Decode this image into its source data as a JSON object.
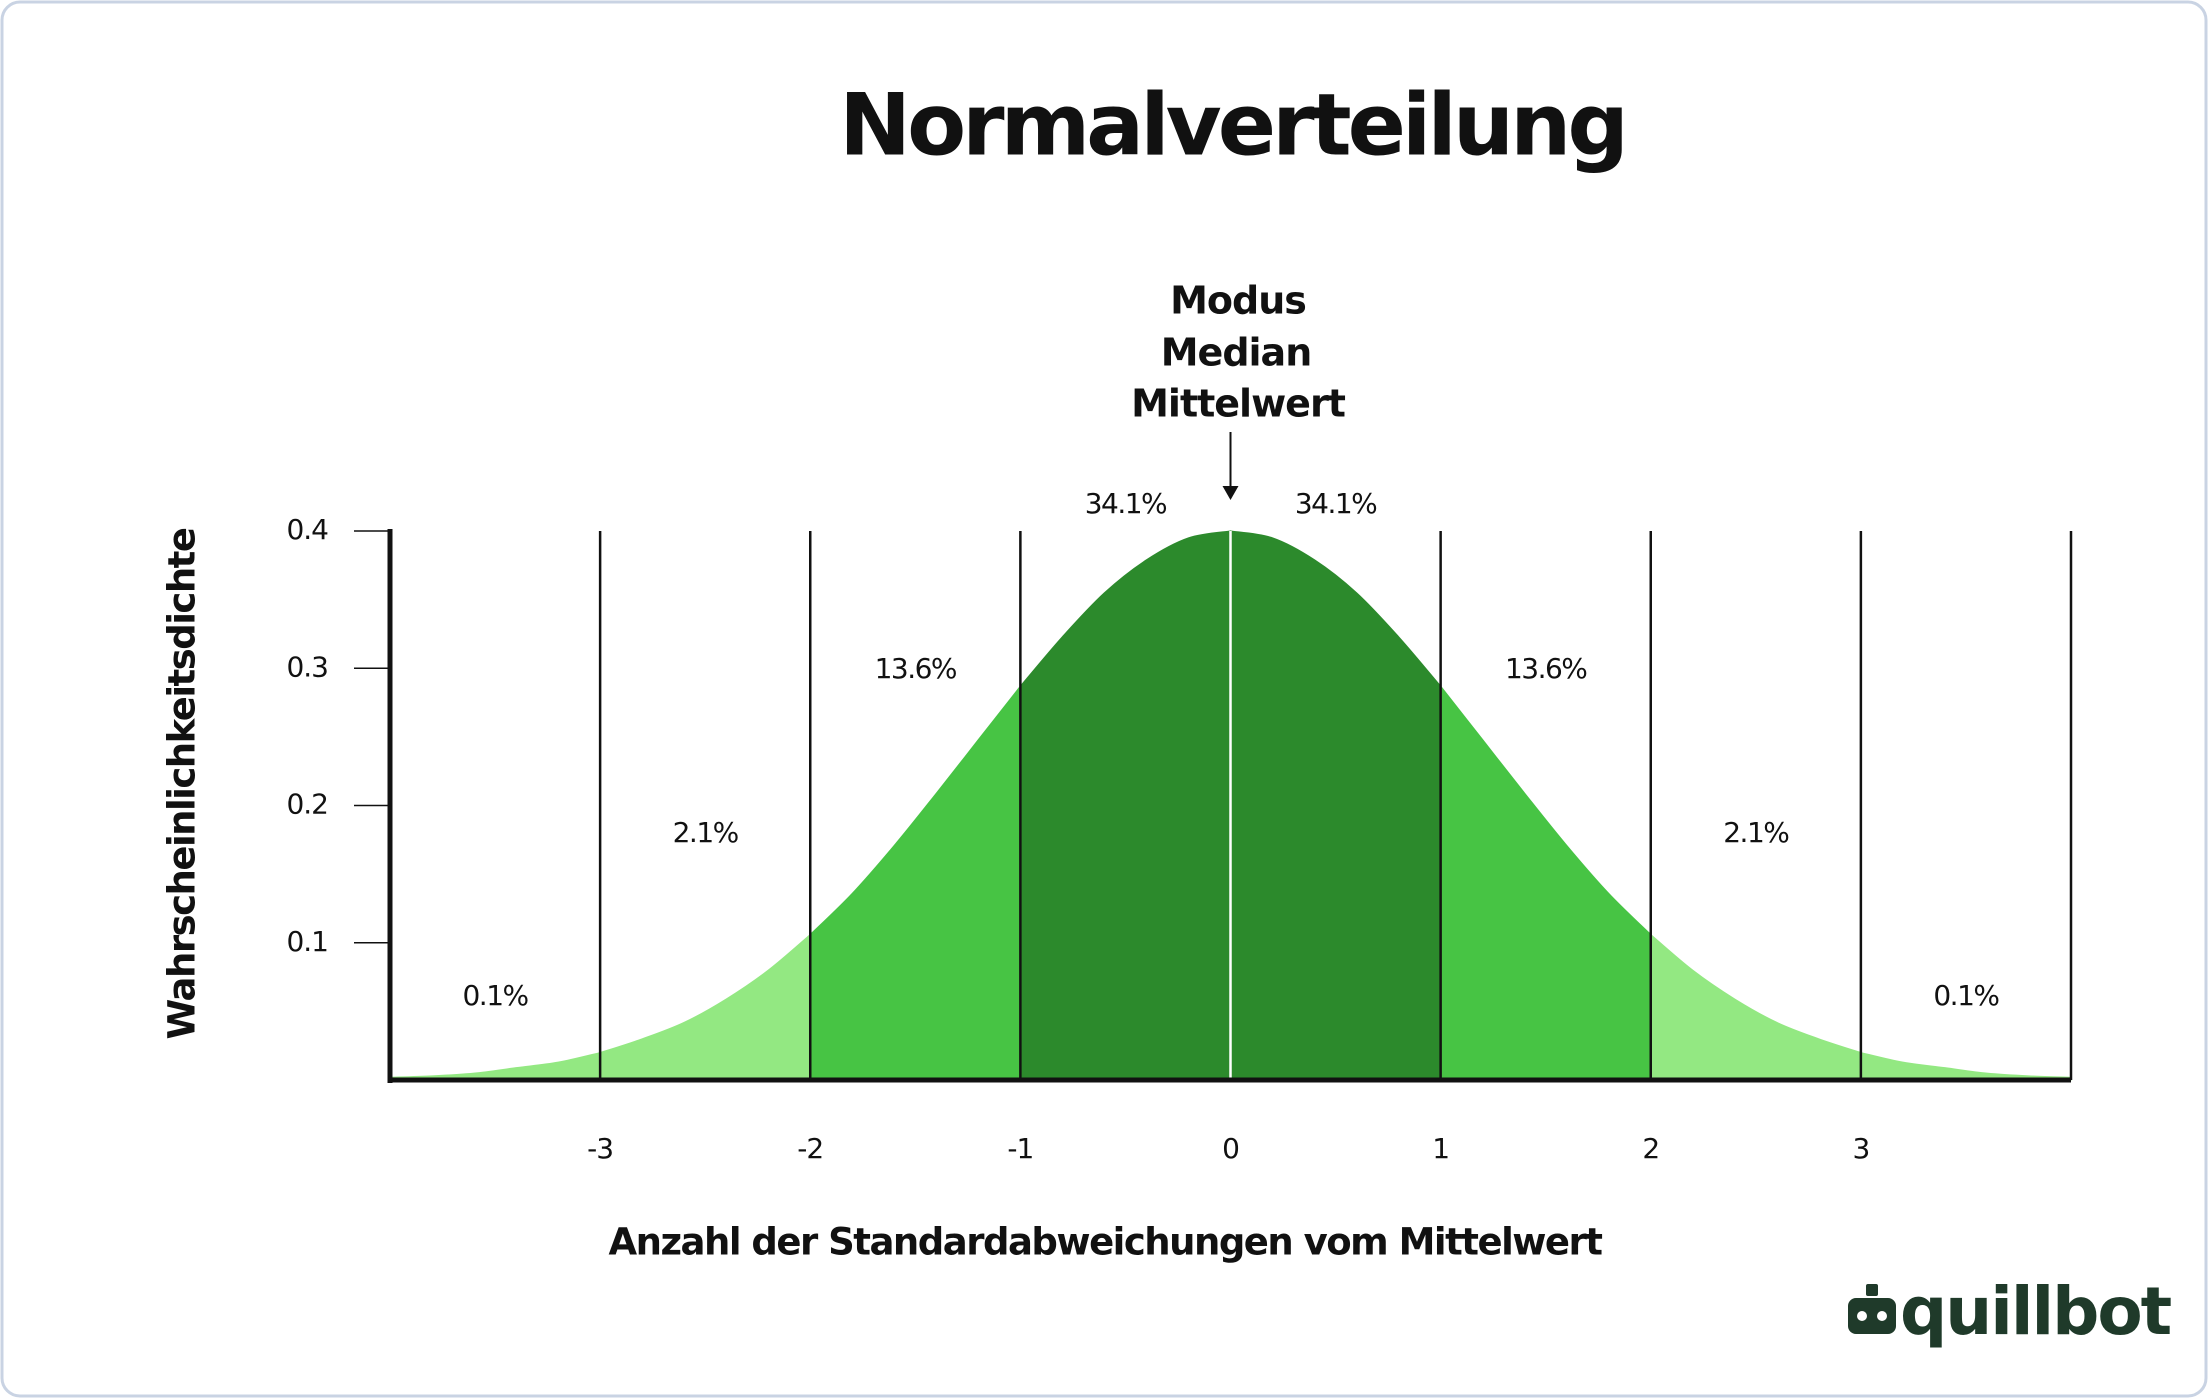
{
  "chart_data": {
    "type": "area",
    "title": "Normalverteilung",
    "annotation": [
      "Modus",
      "Median",
      "Mittelwert"
    ],
    "xlabel": "Anzahl der Standardabweichungen vom Mittelwert",
    "ylabel": "Wahrscheinlichkeitsdichte",
    "x": [
      -4,
      -3.8,
      -3.6,
      -3.4,
      -3.2,
      -3,
      -2.8,
      -2.6,
      -2.4,
      -2.2,
      -2,
      -1.8,
      -1.6,
      -1.4,
      -1.2,
      -1,
      -0.8,
      -0.6,
      -0.4,
      -0.2,
      0,
      0.2,
      0.4,
      0.6,
      0.8,
      1,
      1.2,
      1.4,
      1.6,
      1.8,
      2,
      2.2,
      2.4,
      2.6,
      2.8,
      3,
      3.2,
      3.4,
      3.6,
      3.8,
      4
    ],
    "values": [
      0.002,
      0.003,
      0.005,
      0.009,
      0.013,
      0.02,
      0.03,
      0.042,
      0.059,
      0.08,
      0.106,
      0.136,
      0.171,
      0.209,
      0.248,
      0.287,
      0.323,
      0.355,
      0.379,
      0.395,
      0.4,
      0.395,
      0.379,
      0.355,
      0.323,
      0.287,
      0.248,
      0.209,
      0.171,
      0.136,
      0.106,
      0.08,
      0.059,
      0.042,
      0.03,
      0.02,
      0.013,
      0.009,
      0.005,
      0.003,
      0.002
    ],
    "regions": [
      {
        "from": -4,
        "to": -3,
        "label": "0.1%",
        "color": "#93e882"
      },
      {
        "from": -3,
        "to": -2,
        "label": "2.1%",
        "color": "#93e882"
      },
      {
        "from": -2,
        "to": -1,
        "label": "13.6%",
        "color": "#47c444"
      },
      {
        "from": -1,
        "to": 0,
        "label": "34.1%",
        "color": "#2c8a2c"
      },
      {
        "from": 0,
        "to": 1,
        "label": "34.1%",
        "color": "#2c8a2c"
      },
      {
        "from": 1,
        "to": 2,
        "label": "13.6%",
        "color": "#47c444"
      },
      {
        "from": 2,
        "to": 3,
        "label": "2.1%",
        "color": "#93e882"
      },
      {
        "from": 3,
        "to": 4,
        "label": "0.1%",
        "color": "#93e882"
      }
    ],
    "divider_color": "#111111",
    "mean_line_color": "#ffffff",
    "xlim": [
      -4,
      4
    ],
    "xticks": [
      -3,
      -2,
      -1,
      0,
      1,
      2,
      3
    ],
    "ylim": [
      0,
      0.4
    ],
    "yticks": [
      0.1,
      0.2,
      0.3,
      0.4
    ],
    "brand": "quillbot"
  }
}
